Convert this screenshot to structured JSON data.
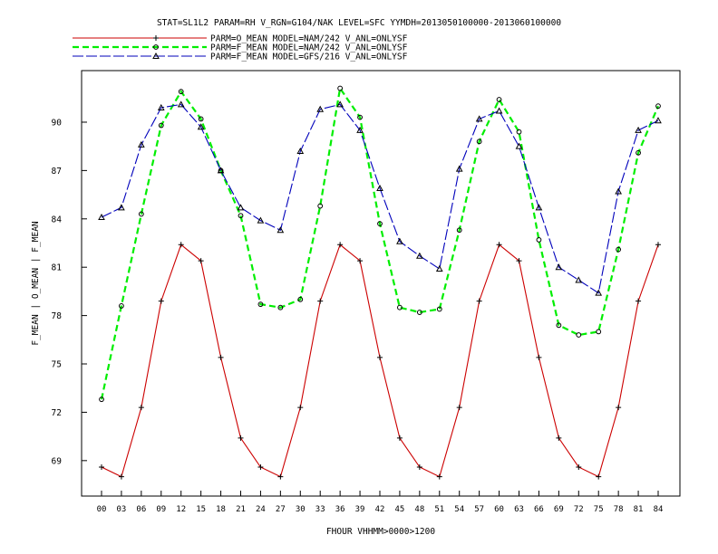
{
  "chart_data": {
    "type": "line",
    "title": "STAT=SL1L2 PARAM=RH V_RGN=G104/NAK LEVEL=SFC YYMDH=2013050100000-2013060100000",
    "xlabel": "FHOUR VHHMM>0000>1200",
    "ylabel": "F_MEAN | O_MEAN | F_MEAN",
    "x": [
      "00",
      "03",
      "06",
      "09",
      "12",
      "15",
      "18",
      "21",
      "24",
      "27",
      "30",
      "33",
      "36",
      "39",
      "42",
      "45",
      "48",
      "51",
      "54",
      "57",
      "60",
      "63",
      "66",
      "69",
      "72",
      "75",
      "78",
      "81",
      "84"
    ],
    "ylim": [
      66.8,
      93.2
    ],
    "yticks": [
      69,
      72,
      75,
      78,
      81,
      84,
      87,
      90
    ],
    "legend_position": "top",
    "grid": false,
    "series": [
      {
        "name": "PARM=O_MEAN MODEL=NAM/242 V_ANL=ONLYSF",
        "color": "#cc0000",
        "dash": "solid",
        "marker": "plus",
        "values": [
          68.6,
          68.0,
          72.3,
          78.9,
          82.4,
          81.4,
          75.4,
          70.4,
          68.6,
          68.0,
          72.3,
          78.9,
          82.4,
          81.4,
          75.4,
          70.4,
          68.6,
          68.0,
          72.3,
          78.9,
          82.4,
          81.4,
          75.4,
          70.4,
          68.6,
          68.0,
          72.3,
          78.9,
          82.4
        ]
      },
      {
        "name": "PARM=F_MEAN MODEL=NAM/242 V_ANL=ONLYSF",
        "color": "#00ee00",
        "dash": "dashed",
        "marker": "circle",
        "values": [
          72.8,
          78.6,
          84.3,
          89.8,
          91.9,
          90.2,
          87.0,
          84.2,
          78.7,
          78.5,
          79.0,
          84.8,
          92.1,
          90.3,
          83.7,
          78.5,
          78.2,
          78.4,
          83.3,
          88.8,
          91.4,
          89.4,
          82.7,
          77.4,
          76.8,
          77.0,
          82.1,
          88.1,
          91.0
        ]
      },
      {
        "name": "PARM=F_MEAN MODEL=GFS/216 V_ANL=ONLYSF",
        "color": "#0000bb",
        "dash": "longdash",
        "marker": "triangle",
        "values": [
          84.1,
          84.7,
          88.6,
          90.9,
          91.1,
          89.7,
          87.0,
          84.7,
          83.9,
          83.3,
          88.2,
          90.8,
          91.1,
          89.5,
          85.9,
          82.6,
          81.7,
          80.9,
          87.1,
          90.2,
          90.7,
          88.5,
          84.7,
          81.0,
          80.2,
          79.4,
          85.7,
          89.5,
          90.1
        ]
      }
    ]
  }
}
